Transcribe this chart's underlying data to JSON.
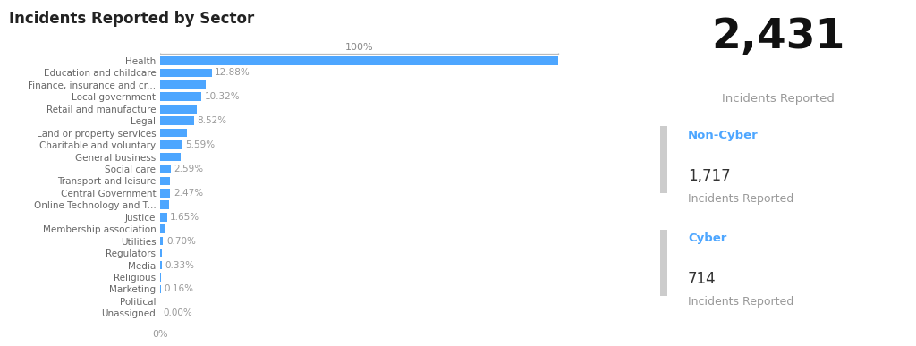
{
  "title": "Incidents Reported by Sector",
  "categories": [
    "Health",
    "Education and childcare",
    "Finance, insurance and cr...",
    "Local government",
    "Retail and manufacture",
    "Legal",
    "Land or property services",
    "Charitable and voluntary",
    "General business",
    "Social care",
    "Transport and leisure",
    "Central Government",
    "Online Technology and T...",
    "Justice",
    "Membership association",
    "Utilities",
    "Regulators",
    "Media",
    "Religious",
    "Marketing",
    "Political",
    "Unassigned"
  ],
  "values": [
    100.0,
    12.88,
    11.5,
    10.32,
    9.2,
    8.52,
    6.8,
    5.59,
    5.1,
    2.59,
    2.53,
    2.47,
    2.1,
    1.65,
    1.3,
    0.7,
    0.5,
    0.33,
    0.25,
    0.16,
    0.05,
    0.0
  ],
  "bar_labels": [
    "",
    "12.88%",
    "",
    "10.32%",
    "",
    "8.52%",
    "",
    "5.59%",
    "",
    "2.59%",
    "",
    "2.47%",
    "",
    "1.65%",
    "",
    "0.70%",
    "",
    "0.33%",
    "",
    "0.16%",
    "",
    "0.00%"
  ],
  "bar_color": "#4da6ff",
  "background_color": "#ffffff",
  "title_fontsize": 12,
  "bar_label_color": "#999999",
  "ref_line_label": "100%",
  "x_tick_label": "0%",
  "total_label": "2,431",
  "total_sub": "Incidents Reported",
  "non_cyber_label": "Non-Cyber",
  "non_cyber_value": "1,717",
  "non_cyber_sub": "Incidents Reported",
  "cyber_label": "Cyber",
  "cyber_value": "714",
  "cyber_sub": "Incidents Reported",
  "accent_color": "#4da6ff",
  "sidebar_divider_color": "#cccccc",
  "cat_label_color": "#666666",
  "cat_fontsize": 7.5,
  "bar_label_fontsize": 7.5
}
